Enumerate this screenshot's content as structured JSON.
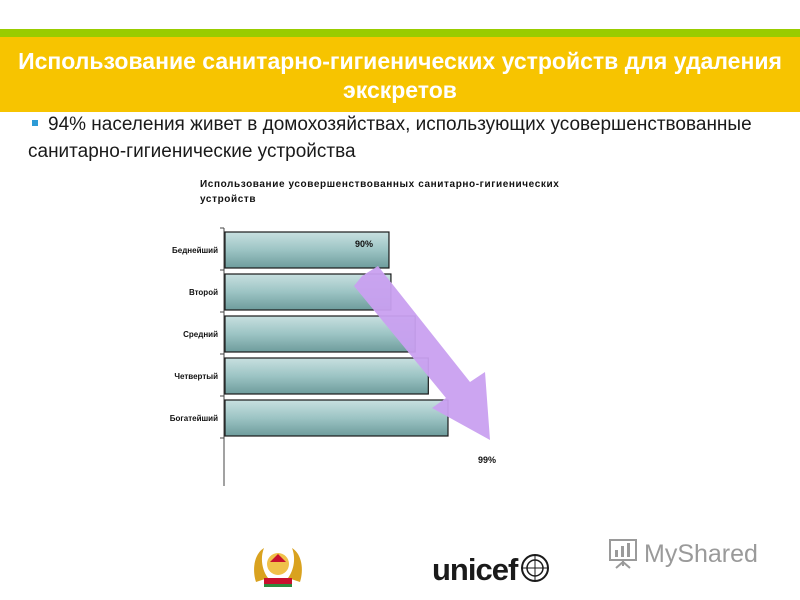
{
  "slide": {
    "title": "Использование санитарно-гигиенических устройств для удаления экскретов",
    "bullet": "94% населения живет в домохозяйствах, использующих усовершенствованные санитарно-гигиенические устройства"
  },
  "chart_data": {
    "type": "bar",
    "orientation": "horizontal",
    "title": "Использование усовершенствованных санитарно-гигиенических устройств",
    "categories": [
      "Беднейший",
      "Второй",
      "Средний",
      "Четвертый",
      "Богатейший"
    ],
    "values": [
      90,
      90.3,
      94,
      96,
      99
    ],
    "annotations": [
      {
        "category": "Беднейший",
        "label": "90%"
      },
      {
        "category": "Богатейший",
        "label": "99%"
      }
    ],
    "colors": {
      "bar": "#8fb8b8",
      "arrow": "#c9a0f0"
    },
    "grid": false,
    "legend": "none"
  },
  "footer": {
    "unicef": "unicef",
    "myshared": "MyShared"
  }
}
